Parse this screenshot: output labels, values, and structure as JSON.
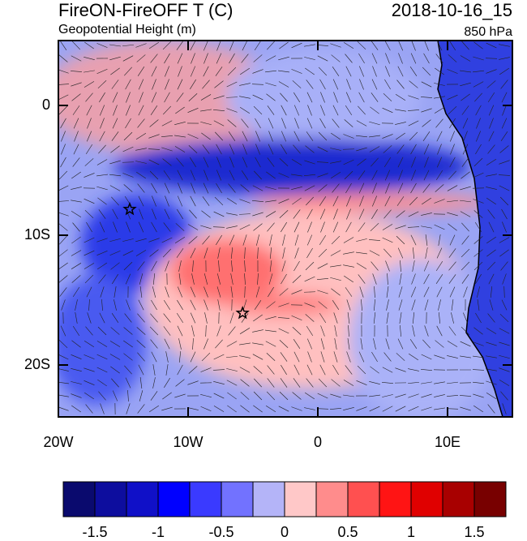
{
  "map": {
    "title": "FireON-FireOFF T (C)",
    "subtitle": "Geopotential Height (m)",
    "date": "2018-10-16_15",
    "level": "850 hPa",
    "lonlim": [
      -20,
      15
    ],
    "latlim": [
      -24,
      5
    ],
    "lon_ticks": [
      {
        "value": -20,
        "label": "20W"
      },
      {
        "value": -10,
        "label": "10W"
      },
      0,
      {
        "value": 10,
        "label": "10E"
      }
    ],
    "lat_ticks": [
      0,
      {
        "value": -10,
        "label": "10S"
      },
      {
        "value": -20,
        "label": "20S"
      }
    ],
    "markers": [
      {
        "lon": -14.5,
        "lat": -8
      },
      {
        "lon": -5.8,
        "lat": -16
      }
    ],
    "colorbar": {
      "lim": [
        -1.75,
        1.75
      ],
      "colors": [
        "#0a0a6e",
        "#0d0d9e",
        "#1010c8",
        "#0000ff",
        "#3a3aff",
        "#7272ff",
        "#b4b4f8",
        "#ffc8c8",
        "#ff8c8c",
        "#ff5050",
        "#ff1414",
        "#e00000",
        "#a80000",
        "#780000"
      ],
      "ticks": [
        -1.5,
        -1,
        -0.5,
        0,
        0.5,
        1,
        1.5
      ]
    }
  }
}
